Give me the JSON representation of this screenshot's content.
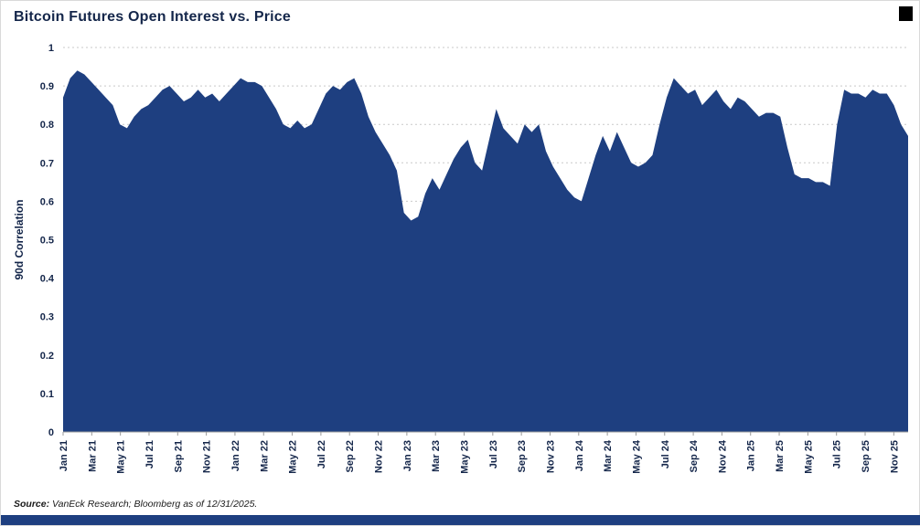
{
  "header": {
    "title": "Bitcoin Futures Open Interest vs. Price"
  },
  "footer": {
    "source_prefix": "Source:",
    "source_text": " VanEck Research; Bloomberg as of 12/31/2025."
  },
  "colors": {
    "fill": "#1e3f80",
    "axis_text": "#14264a",
    "gridline": "#c9c9c9",
    "axis_line": "#9b9b9b",
    "bottom_bar": "#1e3f80"
  },
  "chart_data": {
    "type": "area",
    "title": "Bitcoin Futures Open Interest vs. Price",
    "xlabel": "",
    "ylabel": "90d Correlation",
    "ylim": [
      0,
      1
    ],
    "ytick_step": 0.1,
    "ytick_labels": [
      "0",
      "0.1",
      "0.2",
      "0.3",
      "0.4",
      "0.5",
      "0.6",
      "0.7",
      "0.8",
      "0.9",
      "1"
    ],
    "grid": true,
    "legend_position": "none",
    "x_range": "Jan 2021 - Dec 2025",
    "x_points_per_month": 2,
    "x_tick_labels": [
      "Jan 21",
      "Mar 21",
      "May 21",
      "Jul 21",
      "Sep 21",
      "Nov 21",
      "Jan 22",
      "Mar 22",
      "May 22",
      "Jul 22",
      "Sep 22",
      "Nov 22",
      "Jan 23",
      "Mar 23",
      "May 23",
      "Jul 23",
      "Sep 23",
      "Nov 23",
      "Jan 24",
      "Mar 24",
      "May 24",
      "Jul 24",
      "Sep 24",
      "Nov 24",
      "Jan 25",
      "Mar 25",
      "May 25",
      "Jul 25",
      "Sep 25",
      "Nov 25"
    ],
    "x_tick_month_indices": [
      0,
      2,
      4,
      6,
      8,
      10,
      12,
      14,
      16,
      18,
      20,
      22,
      24,
      26,
      28,
      30,
      32,
      34,
      36,
      38,
      40,
      42,
      44,
      46,
      48,
      50,
      52,
      54,
      56,
      58
    ],
    "series": [
      {
        "name": "90d Correlation",
        "values": [
          0.87,
          0.92,
          0.94,
          0.93,
          0.91,
          0.89,
          0.87,
          0.85,
          0.8,
          0.79,
          0.82,
          0.84,
          0.85,
          0.87,
          0.89,
          0.9,
          0.88,
          0.86,
          0.87,
          0.89,
          0.87,
          0.88,
          0.86,
          0.88,
          0.9,
          0.92,
          0.91,
          0.91,
          0.9,
          0.87,
          0.84,
          0.8,
          0.79,
          0.81,
          0.79,
          0.8,
          0.84,
          0.88,
          0.9,
          0.89,
          0.91,
          0.92,
          0.88,
          0.82,
          0.78,
          0.75,
          0.72,
          0.68,
          0.57,
          0.55,
          0.56,
          0.62,
          0.66,
          0.63,
          0.67,
          0.71,
          0.74,
          0.76,
          0.7,
          0.68,
          0.76,
          0.84,
          0.79,
          0.77,
          0.75,
          0.8,
          0.78,
          0.8,
          0.73,
          0.69,
          0.66,
          0.63,
          0.61,
          0.6,
          0.66,
          0.72,
          0.77,
          0.73,
          0.78,
          0.74,
          0.7,
          0.69,
          0.7,
          0.72,
          0.8,
          0.87,
          0.92,
          0.9,
          0.88,
          0.89,
          0.85,
          0.87,
          0.89,
          0.86,
          0.84,
          0.87,
          0.86,
          0.84,
          0.82,
          0.83,
          0.83,
          0.82,
          0.74,
          0.67,
          0.66,
          0.66,
          0.65,
          0.65,
          0.64,
          0.8,
          0.89,
          0.88,
          0.88,
          0.87,
          0.89,
          0.88,
          0.88,
          0.85,
          0.8,
          0.77
        ]
      }
    ]
  }
}
